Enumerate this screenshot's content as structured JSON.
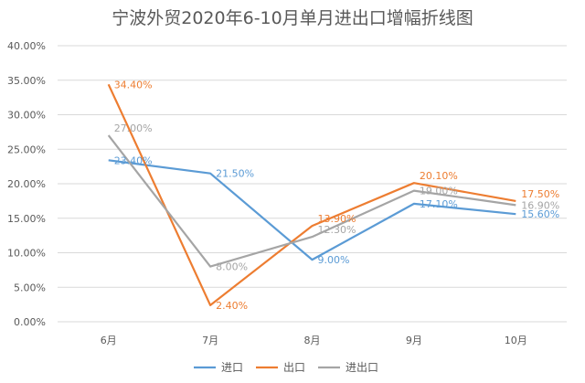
{
  "chart_data": {
    "type": "line",
    "title": "宁波外贸2020年6-10月单月进出口增幅折线图",
    "xlabel": "",
    "ylabel": "",
    "categories": [
      "6月",
      "7月",
      "8月",
      "9月",
      "10月"
    ],
    "ylim": [
      0,
      40
    ],
    "yticks": [
      "0.00%",
      "5.00%",
      "10.00%",
      "15.00%",
      "20.00%",
      "25.00%",
      "30.00%",
      "35.00%",
      "40.00%"
    ],
    "grid": true,
    "legend": "bottom",
    "series": [
      {
        "name": "进口",
        "color": "#5b9bd5",
        "values": [
          23.4,
          21.5,
          9.0,
          17.1,
          15.6
        ],
        "labels": [
          "23.40%",
          "21.50%",
          "9.00%",
          "17.10%",
          "15.60%"
        ]
      },
      {
        "name": "出口",
        "color": "#ed7d31",
        "values": [
          34.4,
          2.4,
          13.9,
          20.1,
          17.5
        ],
        "labels": [
          "34.40%",
          "2.40%",
          "13.90%",
          "20.10%",
          "17.50%"
        ]
      },
      {
        "name": "进出口",
        "color": "#a5a5a5",
        "values": [
          27.0,
          8.0,
          12.3,
          19.0,
          16.9
        ],
        "labels": [
          "27.00%",
          "8.00%",
          "12.30%",
          "19.00%",
          "16.90%"
        ]
      }
    ]
  }
}
